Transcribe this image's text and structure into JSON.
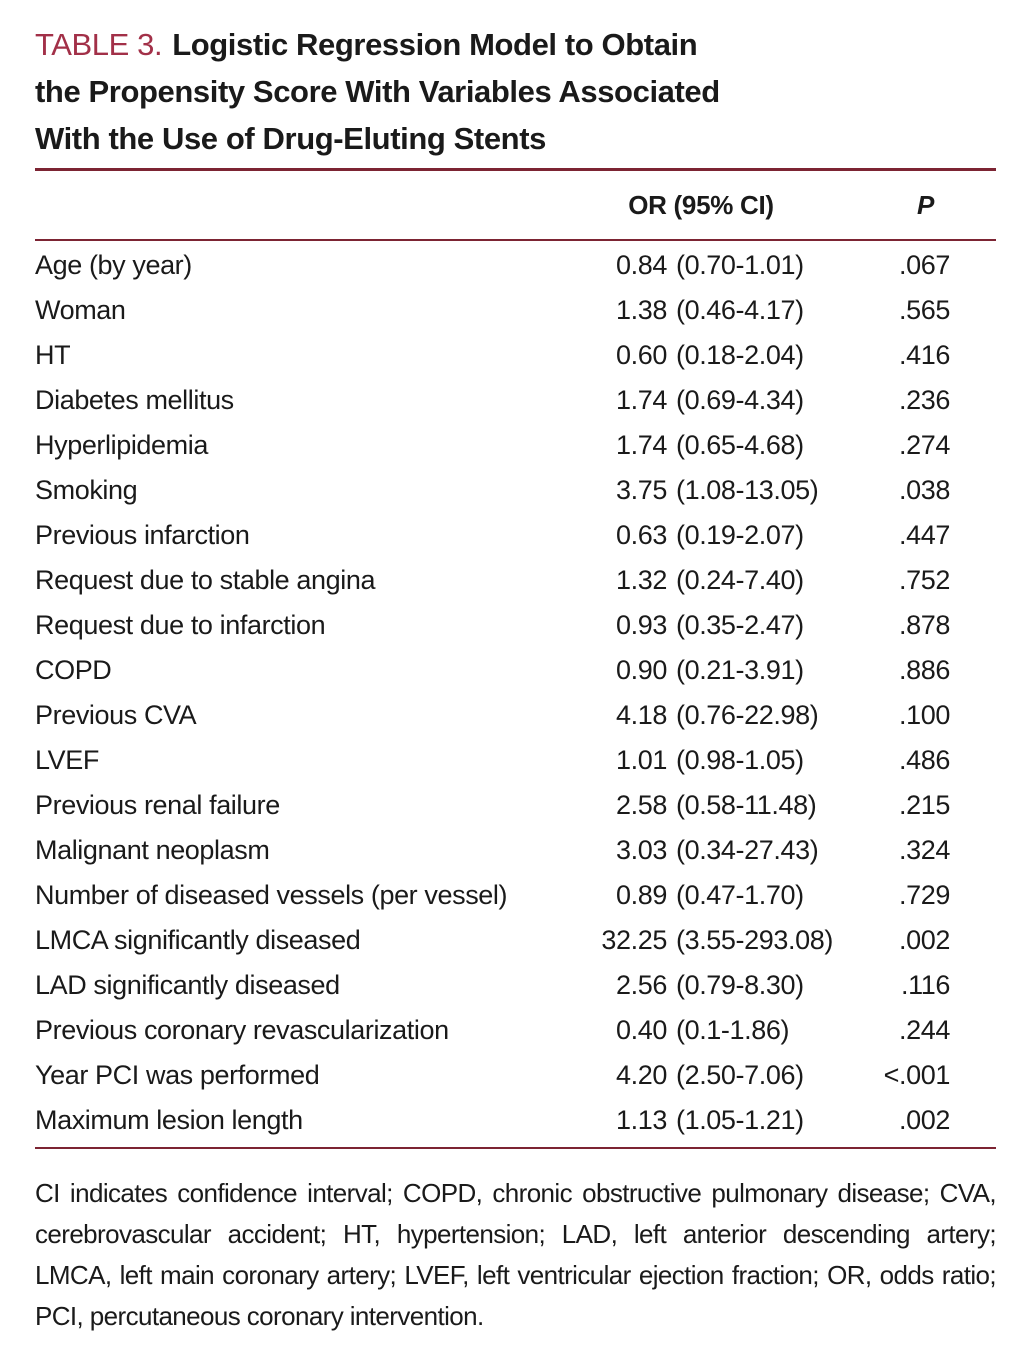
{
  "title": {
    "label": "TABLE 3.",
    "lines": [
      "Logistic Regression Model to Obtain",
      "the Propensity Score With Variables Associated",
      "With the Use of Drug-Eluting Stents"
    ]
  },
  "header": {
    "or_label": "OR (95% CI)",
    "p_label": "P"
  },
  "rows": [
    {
      "variable": "Age (by year)",
      "or": "0.84",
      "ci": "(0.70-1.01)",
      "p": ".067"
    },
    {
      "variable": "Woman",
      "or": "1.38",
      "ci": "(0.46-4.17)",
      "p": ".565"
    },
    {
      "variable": "HT",
      "or": "0.60",
      "ci": "(0.18-2.04)",
      "p": ".416"
    },
    {
      "variable": "Diabetes mellitus",
      "or": "1.74",
      "ci": "(0.69-4.34)",
      "p": ".236"
    },
    {
      "variable": "Hyperlipidemia",
      "or": "1.74",
      "ci": "(0.65-4.68)",
      "p": ".274"
    },
    {
      "variable": "Smoking",
      "or": "3.75",
      "ci": "(1.08-13.05)",
      "p": ".038"
    },
    {
      "variable": "Previous infarction",
      "or": "0.63",
      "ci": "(0.19-2.07)",
      "p": ".447"
    },
    {
      "variable": "Request due to stable angina",
      "or": "1.32",
      "ci": "(0.24-7.40)",
      "p": ".752"
    },
    {
      "variable": "Request due to infarction",
      "or": "0.93",
      "ci": "(0.35-2.47)",
      "p": ".878"
    },
    {
      "variable": "COPD",
      "or": "0.90",
      "ci": "(0.21-3.91)",
      "p": ".886"
    },
    {
      "variable": "Previous CVA",
      "or": "4.18",
      "ci": "(0.76-22.98)",
      "p": ".100"
    },
    {
      "variable": "LVEF",
      "or": "1.01",
      "ci": "(0.98-1.05)",
      "p": ".486"
    },
    {
      "variable": "Previous renal failure",
      "or": "2.58",
      "ci": "(0.58-11.48)",
      "p": ".215"
    },
    {
      "variable": "Malignant neoplasm",
      "or": "3.03",
      "ci": "(0.34-27.43)",
      "p": ".324"
    },
    {
      "variable": "Number of diseased vessels (per vessel)",
      "or": "0.89",
      "ci": "(0.47-1.70)",
      "p": ".729"
    },
    {
      "variable": "LMCA significantly diseased",
      "or": "32.25",
      "ci": "(3.55-293.08)",
      "p": ".002"
    },
    {
      "variable": "LAD significantly diseased",
      "or": "2.56",
      "ci": "(0.79-8.30)",
      "p": ".116"
    },
    {
      "variable": "Previous coronary revascularization",
      "or": "0.40",
      "ci": "(0.1-1.86)",
      "p": ".244"
    },
    {
      "variable": "Year PCI was performed",
      "or": "4.20",
      "ci": "(2.50-7.06)",
      "p": "<.001"
    },
    {
      "variable": "Maximum lesion length",
      "or": "1.13",
      "ci": "(1.05-1.21)",
      "p": ".002"
    }
  ],
  "footnote": {
    "text": "CI indicates confidence interval; COPD, chronic obstructive pulmonary disease; CVA, cerebrovascular accident; HT, hypertension; LAD, left anterior descending artery; LMCA, left main coronary artery; LVEF, left ventricular ejection fraction; OR, odds ratio; PCI, percutaneous coronary intervention."
  },
  "colors": {
    "table_label_red": "#a23048",
    "rule_maroon": "#7c2433",
    "text_black": "#1a1a1a"
  }
}
